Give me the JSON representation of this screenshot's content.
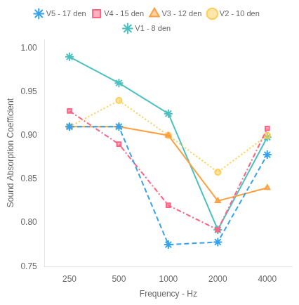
{
  "chart_data": {
    "type": "line",
    "xlabel": "Frequency - Hz",
    "ylabel": "Sound Absorption Coefficient",
    "categories": [
      "250",
      "500",
      "1000",
      "2000",
      "4000"
    ],
    "series": [
      {
        "name": "V5 - 17 den",
        "values": [
          0.91,
          0.91,
          0.775,
          0.778,
          0.878
        ],
        "marker": "star",
        "line_style": "dashed"
      },
      {
        "name": "V4 - 15 den",
        "values": [
          0.928,
          0.89,
          0.82,
          0.792,
          0.908
        ],
        "marker": "square",
        "line_style": "dashdot"
      },
      {
        "name": "V3 - 12 den",
        "values": [
          0.91,
          0.91,
          0.9,
          0.825,
          0.84
        ],
        "marker": "triangle",
        "line_style": "solid"
      },
      {
        "name": "V2 - 10 den",
        "values": [
          0.91,
          0.94,
          0.9,
          0.858,
          0.9
        ],
        "marker": "circle",
        "line_style": "dotted"
      },
      {
        "name": "V1 - 8 den",
        "values": [
          0.99,
          0.96,
          0.925,
          0.792,
          0.898
        ],
        "marker": "star",
        "line_style": "solid"
      }
    ],
    "ylim": [
      0.75,
      1.01
    ],
    "yticks": [
      {
        "value": 0.75,
        "label": "0.75"
      },
      {
        "value": 0.8,
        "label": "0.80"
      },
      {
        "value": 0.85,
        "label": "0.85"
      },
      {
        "value": 0.9,
        "label": "0.90"
      },
      {
        "value": 0.95,
        "label": "0.95"
      },
      {
        "value": 1.0,
        "label": "1.00"
      }
    ],
    "grid": false,
    "legend": "top"
  }
}
